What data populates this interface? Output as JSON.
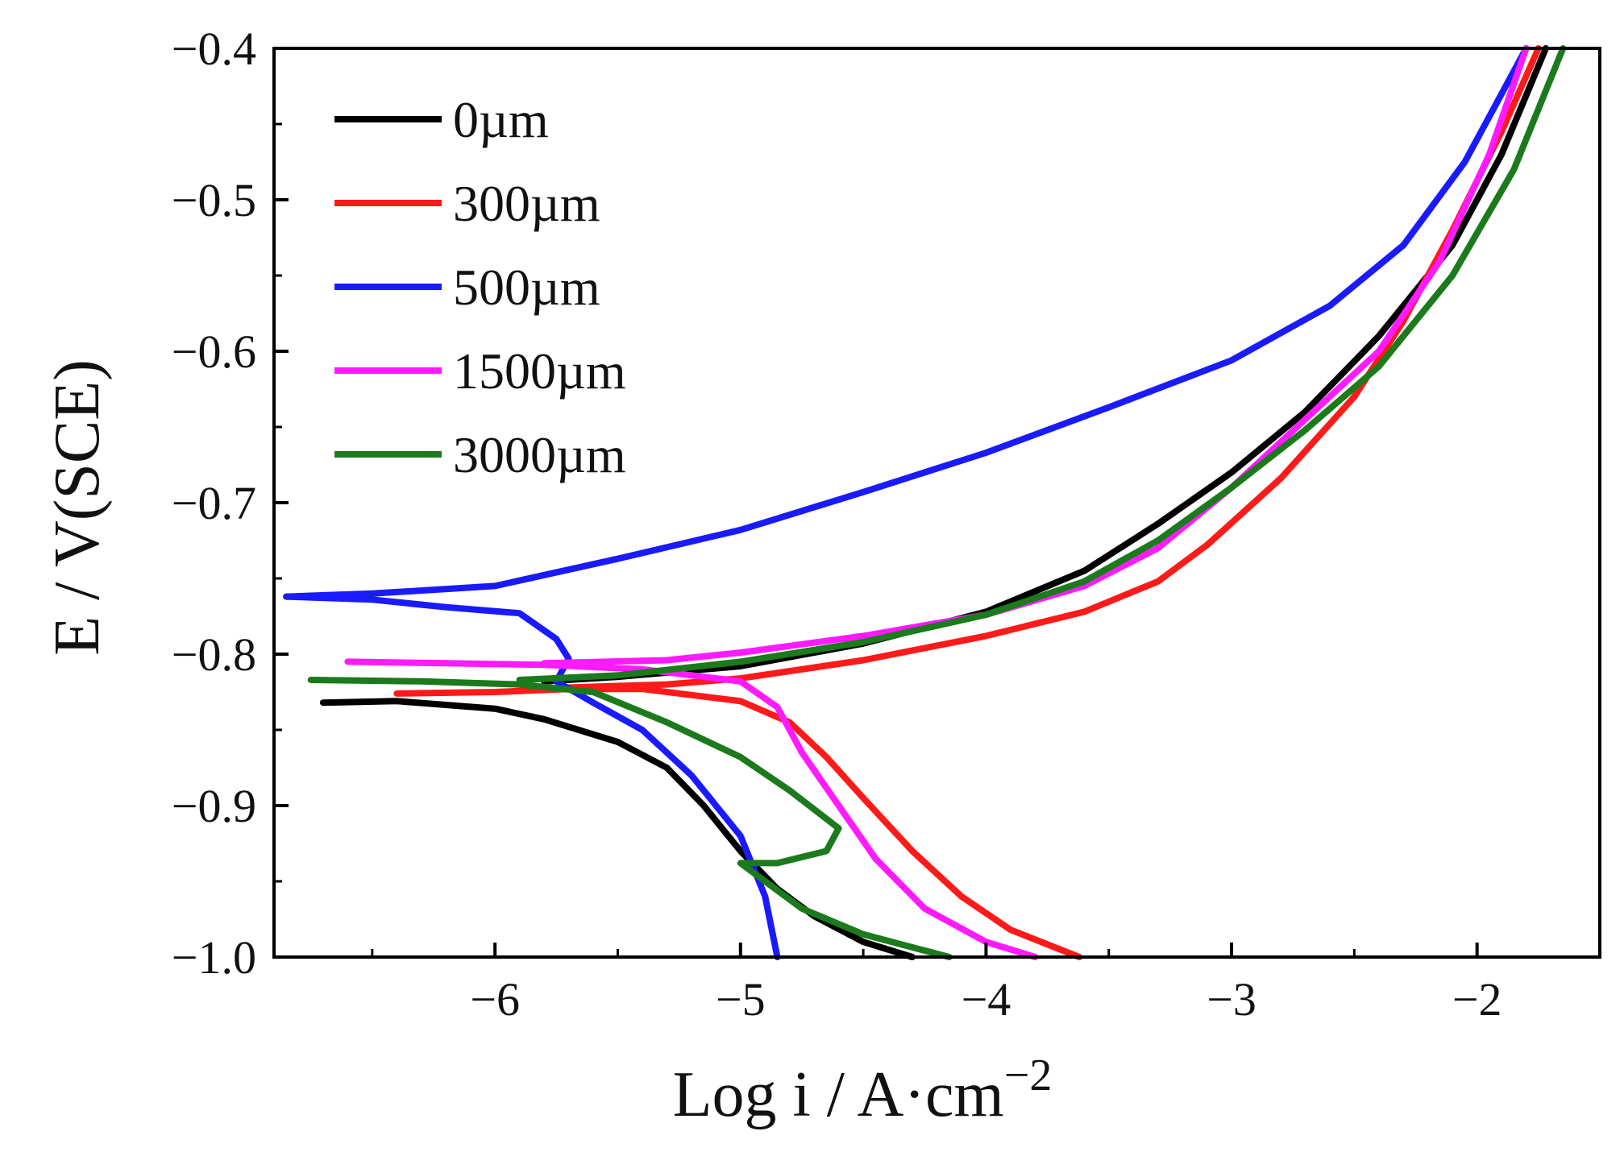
{
  "chart_data": {
    "type": "line",
    "title": "",
    "xlabel": "Log i / A·cm",
    "xlabel_superscript": "−2",
    "ylabel": "E / V(SCE)",
    "xlim": [
      -6.9,
      -1.5
    ],
    "ylim": [
      -1.0,
      -0.4
    ],
    "xticks": [
      -6,
      -5,
      -4,
      -3,
      -2
    ],
    "xtick_labels": [
      "−6",
      "−5",
      "−4",
      "−3",
      "−2"
    ],
    "yticks": [
      -0.4,
      -0.5,
      -0.6,
      -0.7,
      -0.8,
      -0.9,
      -1.0
    ],
    "ytick_labels": [
      "−0.4",
      "−0.5",
      "−0.6",
      "−0.7",
      "−0.8",
      "−0.9",
      "−1.0"
    ],
    "grid": false,
    "legend_position": "top-left",
    "series": [
      {
        "name": "0µm",
        "color": "#000000",
        "points": [
          [
            -6.7,
            -0.832
          ],
          [
            -6.4,
            -0.831
          ],
          [
            -6.0,
            -0.836
          ],
          [
            -5.8,
            -0.843
          ],
          [
            -5.5,
            -0.858
          ],
          [
            -5.3,
            -0.875
          ],
          [
            -5.15,
            -0.9
          ],
          [
            -5.0,
            -0.93
          ],
          [
            -4.85,
            -0.955
          ],
          [
            -4.7,
            -0.973
          ],
          [
            -4.5,
            -0.99
          ],
          [
            -4.3,
            -1.0
          ]
        ],
        "anodic": [
          [
            -5.8,
            -0.818
          ],
          [
            -5.5,
            -0.815
          ],
          [
            -5.0,
            -0.808
          ],
          [
            -4.5,
            -0.793
          ],
          [
            -4.0,
            -0.772
          ],
          [
            -3.6,
            -0.745
          ],
          [
            -3.3,
            -0.714
          ],
          [
            -3.0,
            -0.68
          ],
          [
            -2.7,
            -0.64
          ],
          [
            -2.4,
            -0.59
          ],
          [
            -2.1,
            -0.53
          ],
          [
            -1.9,
            -0.47
          ],
          [
            -1.72,
            -0.4
          ]
        ]
      },
      {
        "name": "300µm",
        "color": "#ff1a1a",
        "points": [
          [
            -6.4,
            -0.826
          ],
          [
            -6.0,
            -0.825
          ],
          [
            -5.7,
            -0.823
          ],
          [
            -5.4,
            -0.823
          ],
          [
            -5.0,
            -0.831
          ],
          [
            -4.8,
            -0.845
          ],
          [
            -4.65,
            -0.868
          ],
          [
            -4.5,
            -0.895
          ],
          [
            -4.3,
            -0.93
          ],
          [
            -4.1,
            -0.96
          ],
          [
            -3.9,
            -0.982
          ],
          [
            -3.62,
            -1.0
          ]
        ],
        "anodic": [
          [
            -5.7,
            -0.822
          ],
          [
            -5.3,
            -0.82
          ],
          [
            -5.0,
            -0.816
          ],
          [
            -4.5,
            -0.804
          ],
          [
            -4.0,
            -0.788
          ],
          [
            -3.6,
            -0.772
          ],
          [
            -3.3,
            -0.752
          ],
          [
            -3.1,
            -0.728
          ],
          [
            -2.8,
            -0.684
          ],
          [
            -2.5,
            -0.63
          ],
          [
            -2.3,
            -0.58
          ],
          [
            -2.1,
            -0.52
          ],
          [
            -1.9,
            -0.455
          ],
          [
            -1.75,
            -0.4
          ]
        ]
      },
      {
        "name": "500µm",
        "color": "#1a1aff",
        "points": [
          [
            -6.85,
            -0.762
          ],
          [
            -6.5,
            -0.764
          ],
          [
            -6.2,
            -0.769
          ],
          [
            -5.9,
            -0.773
          ],
          [
            -5.75,
            -0.79
          ],
          [
            -5.7,
            -0.803
          ],
          [
            -5.75,
            -0.818
          ],
          [
            -5.6,
            -0.832
          ],
          [
            -5.4,
            -0.85
          ],
          [
            -5.2,
            -0.88
          ],
          [
            -5.0,
            -0.92
          ],
          [
            -4.9,
            -0.96
          ],
          [
            -4.85,
            -1.0
          ]
        ],
        "anodic": [
          [
            -6.85,
            -0.762
          ],
          [
            -6.5,
            -0.76
          ],
          [
            -6.0,
            -0.755
          ],
          [
            -5.5,
            -0.737
          ],
          [
            -5.0,
            -0.718
          ],
          [
            -4.5,
            -0.693
          ],
          [
            -4.0,
            -0.667
          ],
          [
            -3.5,
            -0.637
          ],
          [
            -3.0,
            -0.606
          ],
          [
            -2.6,
            -0.57
          ],
          [
            -2.3,
            -0.53
          ],
          [
            -2.05,
            -0.475
          ],
          [
            -1.8,
            -0.4
          ]
        ]
      },
      {
        "name": "1500µm",
        "color": "#ff1aff",
        "points": [
          [
            -6.6,
            -0.805
          ],
          [
            -6.2,
            -0.806
          ],
          [
            -5.8,
            -0.807
          ],
          [
            -5.4,
            -0.81
          ],
          [
            -5.0,
            -0.818
          ],
          [
            -4.85,
            -0.835
          ],
          [
            -4.75,
            -0.865
          ],
          [
            -4.6,
            -0.9
          ],
          [
            -4.45,
            -0.935
          ],
          [
            -4.25,
            -0.968
          ],
          [
            -4.0,
            -0.99
          ],
          [
            -3.8,
            -1.0
          ]
        ],
        "anodic": [
          [
            -5.8,
            -0.806
          ],
          [
            -5.3,
            -0.804
          ],
          [
            -5.0,
            -0.799
          ],
          [
            -4.5,
            -0.788
          ],
          [
            -4.0,
            -0.774
          ],
          [
            -3.6,
            -0.755
          ],
          [
            -3.3,
            -0.73
          ],
          [
            -3.0,
            -0.69
          ],
          [
            -2.7,
            -0.645
          ],
          [
            -2.4,
            -0.6
          ],
          [
            -2.15,
            -0.54
          ],
          [
            -1.95,
            -0.47
          ],
          [
            -1.8,
            -0.4
          ]
        ]
      },
      {
        "name": "3000µm",
        "color": "#1b7a1b",
        "points": [
          [
            -6.75,
            -0.817
          ],
          [
            -6.3,
            -0.818
          ],
          [
            -5.9,
            -0.82
          ],
          [
            -5.6,
            -0.825
          ],
          [
            -5.3,
            -0.845
          ],
          [
            -5.0,
            -0.868
          ],
          [
            -4.8,
            -0.89
          ],
          [
            -4.6,
            -0.915
          ],
          [
            -4.65,
            -0.93
          ],
          [
            -4.85,
            -0.938
          ],
          [
            -5.0,
            -0.938
          ],
          [
            -4.9,
            -0.95
          ],
          [
            -4.75,
            -0.968
          ],
          [
            -4.5,
            -0.985
          ],
          [
            -4.15,
            -1.0
          ]
        ],
        "anodic": [
          [
            -5.9,
            -0.817
          ],
          [
            -5.5,
            -0.814
          ],
          [
            -5.0,
            -0.805
          ],
          [
            -4.5,
            -0.792
          ],
          [
            -4.0,
            -0.774
          ],
          [
            -3.6,
            -0.752
          ],
          [
            -3.3,
            -0.725
          ],
          [
            -3.0,
            -0.69
          ],
          [
            -2.7,
            -0.652
          ],
          [
            -2.4,
            -0.61
          ],
          [
            -2.1,
            -0.55
          ],
          [
            -1.85,
            -0.48
          ],
          [
            -1.65,
            -0.4
          ]
        ]
      }
    ]
  }
}
